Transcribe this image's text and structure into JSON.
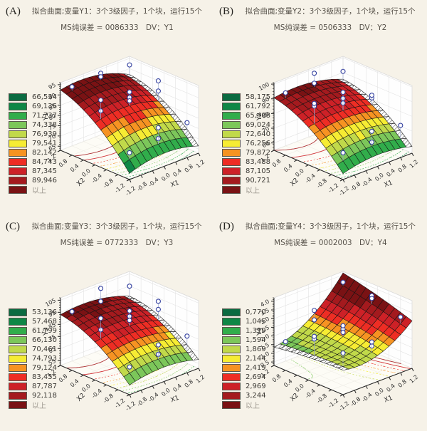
{
  "figure": {
    "background": "#f6f2e8"
  },
  "shared": {
    "palette": [
      "#0b6b41",
      "#0e8746",
      "#31ad4b",
      "#7cc75a",
      "#c1d94a",
      "#f6ec33",
      "#f69322",
      "#ee2d24",
      "#cd2127",
      "#a41a1e",
      "#7a1214"
    ],
    "xy_ticks": [
      -1.2,
      -0.8,
      -0.4,
      0.0,
      0.4,
      0.8,
      1.2
    ],
    "design_points": [
      [
        -1,
        -1
      ],
      [
        1,
        -1
      ],
      [
        -1,
        1
      ],
      [
        1,
        1
      ],
      [
        -1,
        0
      ],
      [
        1,
        0
      ],
      [
        0,
        -1
      ],
      [
        0,
        1
      ],
      [
        -1,
        0
      ],
      [
        1,
        0
      ],
      [
        0,
        -1
      ],
      [
        0,
        1
      ],
      [
        0,
        0
      ],
      [
        0,
        0
      ],
      [
        0,
        0
      ]
    ]
  },
  "chart_data": [
    {
      "type": "surface3d",
      "panel_label": "(A)",
      "title": "拟合曲面;变量Y1：3个3级因子，1个块，运行15个",
      "subtitle": "MS纯误差 = 0086333　DV：Y1",
      "x1_label": "X1",
      "x2_label": "X2",
      "z_label": "Y1",
      "z_ticks": [
        65,
        70,
        75,
        80,
        85,
        90,
        95
      ],
      "zlim": [
        63,
        96
      ],
      "legend_levels": [
        "66,534",
        "69,136",
        "71,737",
        "74,338",
        "76,939",
        "79,541",
        "82,142",
        "84,743",
        "87,345",
        "89,946"
      ],
      "legend_above": "以上",
      "levels": [
        66.534,
        69.136,
        71.737,
        74.338,
        76.939,
        79.541,
        82.142,
        84.743,
        87.345,
        89.946
      ],
      "surface_model": {
        "c0": 85.5,
        "c1": -1,
        "c2": 9.8,
        "c11": -2.2,
        "c22": -3,
        "c12": -1
      },
      "point_dz": [
        0.1,
        0.22,
        0.06,
        0.18,
        0.12,
        0.3,
        0.08,
        0.26,
        0.28,
        0.15,
        0.24,
        0.04,
        0.12,
        0.2,
        0.07
      ],
      "hatch_edge": "right"
    },
    {
      "type": "surface3d",
      "panel_label": "(B)",
      "title": "拟合曲面;变量Y2：3个3级因子，1个块，运行15个",
      "subtitle": "MS纯误差 = 0506333　DV：Y2",
      "x1_label": "X1",
      "x2_label": "X2",
      "z_label": "Y2",
      "z_ticks": [
        60,
        70,
        80,
        90,
        100
      ],
      "zlim": [
        55,
        101
      ],
      "legend_levels": [
        "58,175",
        "61,792",
        "65,408",
        "69,024",
        "72,640",
        "76,256",
        "79,872",
        "83,488",
        "87,105",
        "90,721"
      ],
      "legend_above": "以上",
      "levels": [
        58.175,
        61.792,
        65.408,
        69.024,
        72.64,
        76.256,
        79.872,
        83.488,
        87.105,
        90.721
      ],
      "surface_model": {
        "c0": 83,
        "c1": -1,
        "c2": 12,
        "c11": -2.5,
        "c22": -4,
        "c12": -1
      },
      "point_dz": [
        0.12,
        0.2,
        0.08,
        0.16,
        0.26,
        0.1,
        0.06,
        0.24,
        0.3,
        0.14,
        0.22,
        0.05,
        0.18,
        0.11,
        0.27
      ],
      "hatch_edge": "right"
    },
    {
      "type": "surface3d",
      "panel_label": "(C)",
      "title": "拟合曲面;变量Y3：3个3级因子，1个块，运行15个",
      "subtitle": "MS纯误差 = 0772333　DV：Y3",
      "x1_label": "X1",
      "x2_label": "X2",
      "z_label": "Y3",
      "z_ticks": [
        55,
        65,
        75,
        85,
        95,
        105
      ],
      "zlim": [
        51,
        107
      ],
      "legend_levels": [
        "53,136",
        "57,468",
        "61,799",
        "66,130",
        "70,461",
        "74,793",
        "79,124",
        "83,455",
        "87,787",
        "92,118"
      ],
      "legend_above": "以上",
      "levels": [
        53.136,
        57.468,
        61.799,
        66.13,
        70.461,
        74.793,
        79.124,
        83.455,
        87.787,
        92.118
      ],
      "surface_model": {
        "c0": 85,
        "c1": -1.5,
        "c2": 13,
        "c11": -3,
        "c22": -4.5,
        "c12": -1
      },
      "point_dz": [
        0.09,
        0.24,
        0.05,
        0.19,
        0.13,
        0.28,
        0.07,
        0.25,
        0.3,
        0.16,
        0.21,
        0.03,
        0.14,
        0.22,
        0.08
      ],
      "hatch_edge": "right"
    },
    {
      "type": "surface3d",
      "panel_label": "(D)",
      "title": "拟合曲面;变量Y4：3个3级因子，1个块，运行15个",
      "subtitle": "MS纯误差 = 0002003　DV：Y4",
      "x1_label": "X1",
      "x2_label": "X2",
      "z_label": "Y4",
      "z_ticks": [
        0.5,
        1.0,
        1.5,
        2.0,
        2.5,
        3.0,
        3.5,
        4.0
      ],
      "zlim": [
        0.3,
        4.2
      ],
      "legend_levels": [
        "0,770",
        "1,045",
        "1,319",
        "1,594",
        "1,869",
        "2,144",
        "2,419",
        "2,694",
        "2,969",
        "3,244"
      ],
      "legend_above": "以上",
      "levels": [
        0.77,
        1.045,
        1.319,
        1.594,
        1.869,
        2.144,
        2.419,
        2.694,
        2.969,
        3.244
      ],
      "surface_model": {
        "c0": 2.05,
        "c1": 0.85,
        "c2": 0.15,
        "c11": 0.4,
        "c22": -0.05,
        "c12": 0.25
      },
      "point_dz": [
        0.2,
        0.1,
        0.06,
        0.05,
        0.24,
        0.12,
        0.09,
        0.18,
        0.28,
        0.08,
        0.15,
        0.04,
        0.11,
        0.16,
        0.06
      ],
      "hatch_edge": "left"
    }
  ]
}
